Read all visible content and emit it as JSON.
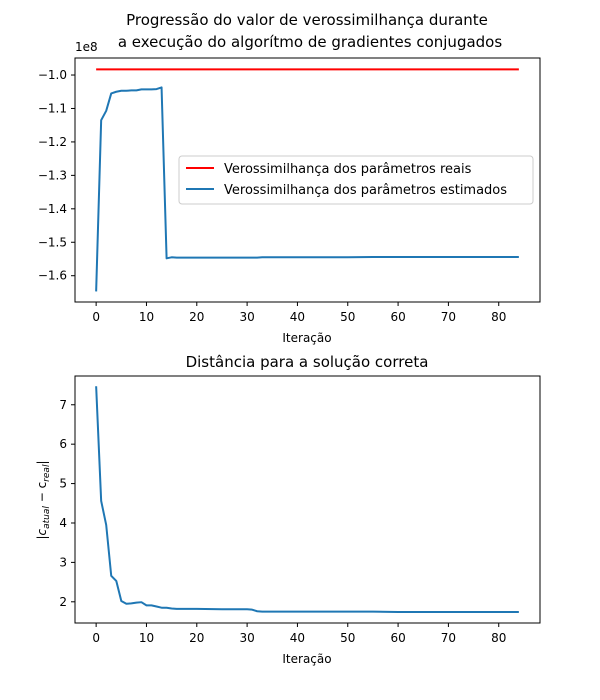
{
  "chart_data": [
    {
      "type": "line",
      "title": [
        "Progressão do valor de verossimilhança durante",
        "a execução do algorítmo de gradientes conjugados"
      ],
      "xlabel": "Iteração",
      "ylabel": "",
      "y_offset_label": "1e8",
      "xlim": [
        -4.2,
        88.2
      ],
      "ylim": [
        -1.6786,
        -0.9491
      ],
      "xticks": [
        0,
        10,
        20,
        30,
        40,
        50,
        60,
        70,
        80
      ],
      "yticks": [
        -1.6,
        -1.5,
        -1.4,
        -1.3,
        -1.2,
        -1.1,
        -1.0
      ],
      "ytick_labels": [
        "−1.6",
        "−1.5",
        "−1.4",
        "−1.3",
        "−1.2",
        "−1.1",
        "−1.0"
      ],
      "grid": false,
      "legend_position": "center-right",
      "series": [
        {
          "name": "Verossimilhança dos parâmetros reais",
          "color": "#ff0000",
          "x": [
            0,
            84
          ],
          "y": [
            -0.983,
            -0.983
          ]
        },
        {
          "name": "Verossimilhança dos parâmetros estimados",
          "color": "#1f77b4",
          "x": [
            0,
            1,
            2,
            3,
            4,
            5,
            6,
            7,
            8,
            9,
            10,
            11,
            12,
            13,
            14,
            15,
            16,
            17,
            18,
            20,
            25,
            30,
            31,
            32,
            33,
            40,
            50,
            55,
            60,
            70,
            80,
            84
          ],
          "y": [
            -1.647,
            -1.135,
            -1.107,
            -1.055,
            -1.05,
            -1.047,
            -1.047,
            -1.046,
            -1.046,
            -1.043,
            -1.043,
            -1.043,
            -1.042,
            -1.037,
            -1.548,
            -1.545,
            -1.546,
            -1.546,
            -1.546,
            -1.546,
            -1.546,
            -1.546,
            -1.546,
            -1.546,
            -1.545,
            -1.545,
            -1.545,
            -1.544,
            -1.544,
            -1.544,
            -1.544,
            -1.544
          ]
        }
      ]
    },
    {
      "type": "line",
      "title": "Distância para a solução correta",
      "xlabel": "Iteração",
      "ylabel_parts": {
        "open": "|c",
        "sub1": "atual",
        "minus": " − c",
        "sub2": "real",
        "close": "|"
      },
      "xlim": [
        -4.2,
        88.2
      ],
      "ylim": [
        1.462,
        7.73
      ],
      "xticks": [
        0,
        10,
        20,
        30,
        40,
        50,
        60,
        70,
        80
      ],
      "yticks": [
        2,
        3,
        4,
        5,
        6,
        7
      ],
      "grid": false,
      "series": [
        {
          "color": "#1f77b4",
          "x": [
            0,
            1,
            2,
            3,
            4,
            5,
            6,
            7,
            8,
            9,
            10,
            11,
            12,
            13,
            14,
            15,
            16,
            20,
            25,
            30,
            31,
            32,
            33,
            40,
            50,
            55,
            60,
            70,
            80,
            84
          ],
          "y": [
            7.47,
            4.56,
            3.95,
            2.66,
            2.53,
            2.02,
            1.95,
            1.96,
            1.98,
            1.99,
            1.91,
            1.91,
            1.88,
            1.85,
            1.85,
            1.83,
            1.82,
            1.82,
            1.81,
            1.81,
            1.8,
            1.76,
            1.75,
            1.75,
            1.75,
            1.75,
            1.74,
            1.74,
            1.74,
            1.74
          ]
        }
      ]
    }
  ]
}
